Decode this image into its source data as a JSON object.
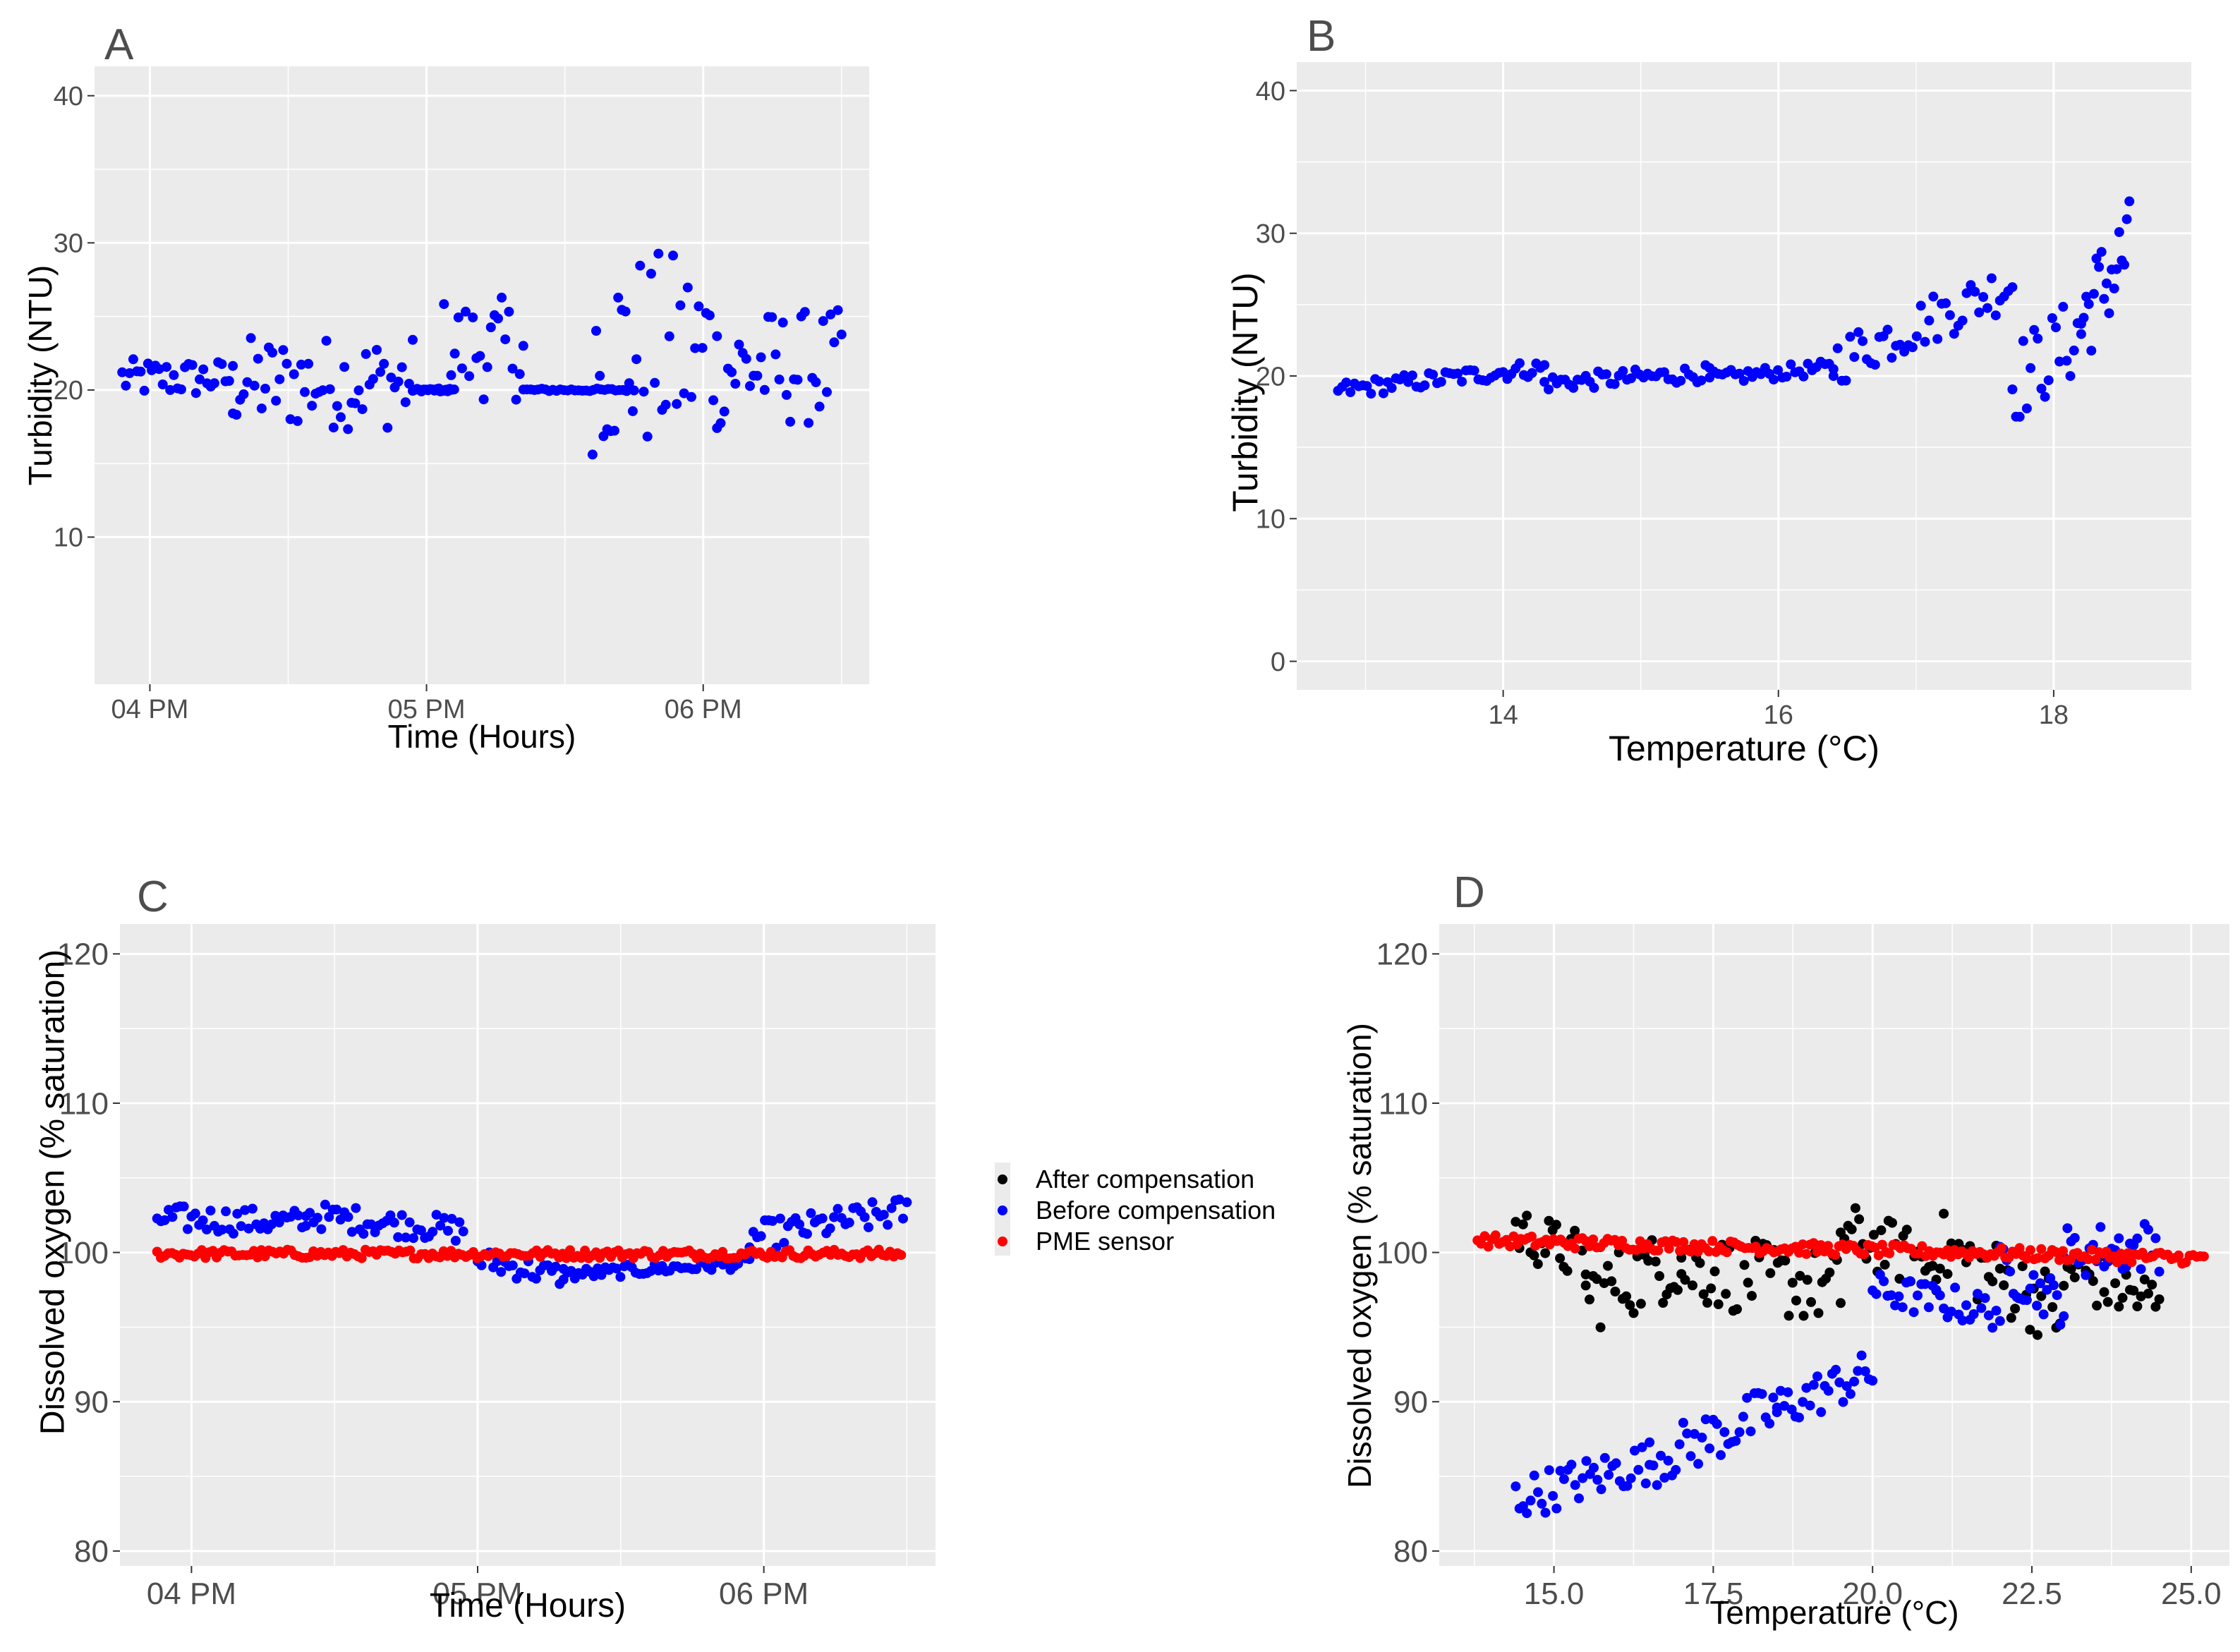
{
  "figure": {
    "colors": {
      "panel_bg": "#ebebeb",
      "grid": "#ffffff",
      "tick_text": "#4d4d4d",
      "axis_title": "#000000",
      "blue": "#0000ff",
      "red": "#ff0000",
      "black": "#000000"
    },
    "legend": {
      "items": [
        {
          "label": "After compensation",
          "color": "#000000"
        },
        {
          "label": "Before compensation",
          "color": "#0000ff"
        },
        {
          "label": "PME sensor",
          "color": "#ff0000"
        }
      ]
    }
  },
  "chart_data": [
    {
      "panel": "A",
      "type": "scatter",
      "xlabel": "Time (Hours)",
      "ylabel": "Turbidity (NTU)",
      "x_ticks": [
        "04 PM",
        "05 PM",
        "06 PM"
      ],
      "x_tick_values": [
        16,
        17,
        18
      ],
      "xlim": [
        15.8,
        18.6
      ],
      "ylim": [
        0,
        42
      ],
      "y_ticks": [
        10,
        20,
        30,
        40
      ],
      "series": [
        {
          "name": "Turbidity",
          "color": "#0000ff",
          "segments": [
            {
              "x0": 15.9,
              "x1": 16.3,
              "y": 20.8,
              "spread": 1.3
            },
            {
              "x0": 16.3,
              "x1": 16.95,
              "y": 20.5,
              "spread": 3.2
            },
            {
              "x0": 16.95,
              "x1": 17.1,
              "y": 20.0,
              "spread": 0.1
            },
            {
              "x0": 17.05,
              "x1": 17.35,
              "y": 22.8,
              "spread": 3.5
            },
            {
              "x0": 17.35,
              "x1": 17.75,
              "y": 20.0,
              "spread": 0.1
            },
            {
              "x0": 17.6,
              "x1": 18.05,
              "y": 22.5,
              "spread": 7.0
            },
            {
              "x0": 18.05,
              "x1": 18.5,
              "y": 21.5,
              "spread": 4.0
            }
          ]
        }
      ]
    },
    {
      "panel": "B",
      "type": "scatter",
      "xlabel": "Temperature (°C)",
      "ylabel": "Turbidity (NTU)",
      "x_ticks": [
        "14",
        "16",
        "18"
      ],
      "x_tick_values": [
        14,
        16,
        18
      ],
      "xlim": [
        12.5,
        19.0
      ],
      "ylim": [
        -2,
        42
      ],
      "y_ticks": [
        0,
        10,
        20,
        30,
        40
      ],
      "series": [
        {
          "name": "Turbidity",
          "color": "#0000ff",
          "segments": [
            {
              "x0": 12.8,
              "x1": 14.3,
              "y0": 19.0,
              "y1": 20.6,
              "spread": 0.6
            },
            {
              "x0": 14.3,
              "x1": 15.5,
              "y0": 19.5,
              "y1": 20.2,
              "spread": 0.6
            },
            {
              "x0": 15.5,
              "x1": 16.4,
              "y0": 19.8,
              "y1": 20.6,
              "spread": 0.5
            },
            {
              "x0": 16.4,
              "x1": 17.7,
              "y0": 21.0,
              "y1": 26.5,
              "spread": 1.8
            },
            {
              "x0": 17.7,
              "x1": 18.2,
              "y0": 19.5,
              "y1": 23.0,
              "spread": 3.0
            },
            {
              "x0": 18.2,
              "x1": 18.55,
              "y0": 24.0,
              "y1": 29.0,
              "spread": 3.5
            }
          ]
        }
      ]
    },
    {
      "panel": "C",
      "type": "scatter",
      "xlabel": "Time (Hours)",
      "ylabel": "Dissolved oxygen (% saturation)",
      "x_ticks": [
        "04 PM",
        "05 PM",
        "06 PM"
      ],
      "x_tick_values": [
        16,
        17,
        18
      ],
      "xlim": [
        15.75,
        18.6
      ],
      "ylim": [
        79,
        122
      ],
      "y_ticks": [
        80,
        90,
        100,
        110,
        120
      ],
      "series": [
        {
          "name": "Before compensation",
          "color": "#0000ff",
          "segments": [
            {
              "x0": 15.88,
              "x1": 16.4,
              "y0": 102.3,
              "y1": 102.0,
              "spread": 0.9
            },
            {
              "x0": 16.4,
              "x1": 16.95,
              "y0": 102.5,
              "y1": 101.5,
              "spread": 0.9
            },
            {
              "x0": 17.0,
              "x1": 17.3,
              "y0": 99.5,
              "y1": 98.4,
              "spread": 0.8
            },
            {
              "x0": 17.3,
              "x1": 17.95,
              "y0": 98.5,
              "y1": 99.3,
              "spread": 0.4
            },
            {
              "x0": 17.95,
              "x1": 18.5,
              "y0": 101.0,
              "y1": 102.8,
              "spread": 1.0
            }
          ]
        },
        {
          "name": "PME sensor",
          "color": "#ff0000",
          "segments": [
            {
              "x0": 15.88,
              "x1": 18.48,
              "y0": 99.9,
              "y1": 99.9,
              "spread": 0.3
            }
          ]
        }
      ]
    },
    {
      "panel": "D",
      "type": "scatter",
      "xlabel": "Temperature (°C)",
      "ylabel": "Dissolved oxygen (% saturation)",
      "x_ticks": [
        "15.0",
        "17.5",
        "20.0",
        "22.5",
        "25.0"
      ],
      "x_tick_values": [
        15,
        17.5,
        20,
        22.5,
        25
      ],
      "xlim": [
        13.2,
        25.6
      ],
      "ylim": [
        79,
        122
      ],
      "y_ticks": [
        80,
        90,
        100,
        110,
        120
      ],
      "series": [
        {
          "name": "After compensation",
          "color": "#000000",
          "segments": [
            {
              "x0": 14.4,
              "x1": 15.5,
              "y0": 101.5,
              "y1": 99.5,
              "spread": 1.8
            },
            {
              "x0": 15.5,
              "x1": 17.0,
              "y0": 97.0,
              "y1": 99.5,
              "spread": 2.5
            },
            {
              "x0": 17.0,
              "x1": 19.5,
              "y0": 99.0,
              "y1": 97.5,
              "spread": 2.5
            },
            {
              "x0": 19.5,
              "x1": 21.0,
              "y0": 101.5,
              "y1": 99.0,
              "spread": 2.0
            },
            {
              "x0": 21.0,
              "x1": 23.0,
              "y0": 100.5,
              "y1": 96.0,
              "spread": 2.5
            },
            {
              "x0": 23.0,
              "x1": 24.5,
              "y0": 99.0,
              "y1": 96.5,
              "spread": 2.0
            }
          ]
        },
        {
          "name": "Before compensation",
          "color": "#0000ff",
          "segments": [
            {
              "x0": 14.4,
              "x1": 16.5,
              "y0": 83.5,
              "y1": 86.0,
              "spread": 1.5
            },
            {
              "x0": 16.5,
              "x1": 18.5,
              "y0": 86.0,
              "y1": 89.5,
              "spread": 1.8
            },
            {
              "x0": 18.5,
              "x1": 20.0,
              "y0": 89.5,
              "y1": 92.0,
              "spread": 1.5
            },
            {
              "x0": 20.0,
              "x1": 22.0,
              "y0": 97.5,
              "y1": 96.0,
              "spread": 1.2
            },
            {
              "x0": 22.0,
              "x1": 23.0,
              "y0": 99.0,
              "y1": 96.5,
              "spread": 1.5
            },
            {
              "x0": 23.0,
              "x1": 24.5,
              "y0": 100.0,
              "y1": 100.5,
              "spread": 1.8
            }
          ]
        },
        {
          "name": "PME sensor",
          "color": "#ff0000",
          "segments": [
            {
              "x0": 13.8,
              "x1": 25.2,
              "y0": 100.8,
              "y1": 99.6,
              "spread": 0.4
            }
          ]
        }
      ]
    }
  ]
}
